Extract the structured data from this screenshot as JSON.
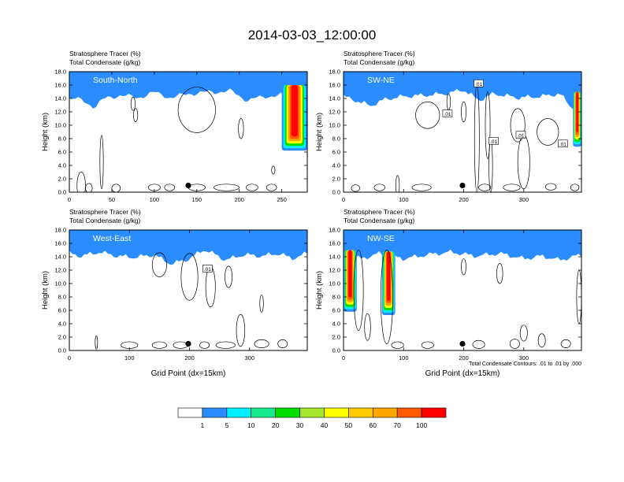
{
  "figure": {
    "title": "2014-03-03_12:00:00"
  },
  "colors": {
    "levels": [
      "#ffffff",
      "#2a8cff",
      "#1ed8f5",
      "#00f0ff",
      "#16e88c",
      "#00dd00",
      "#a6e62e",
      "#ffff00",
      "#ffcc00",
      "#ffa500",
      "#ff5a00",
      "#ff0000"
    ],
    "contour": "#000000",
    "frame": "#000000",
    "marker": "#000000"
  },
  "colorbar": {
    "labels": [
      "1",
      "5",
      "10",
      "20",
      "30",
      "40",
      "50",
      "60",
      "70",
      "100"
    ],
    "swatches": [
      "#ffffff",
      "#2a8cff",
      "#00f0ff",
      "#16e88c",
      "#00dd00",
      "#a6e62e",
      "#ffff00",
      "#ffcc00",
      "#ffa500",
      "#ff5a00",
      "#ff0000"
    ]
  },
  "contour_note": "Total Condensate Contours: .01 to .01 by .000",
  "chart_data": [
    {
      "type": "heatmap",
      "id": "p1",
      "label": "South-North",
      "title_line1": "Stratosphere Tracer   (%)",
      "title_line2": "Total Condensate   (g/kg)",
      "ylabel": "Height (km)",
      "xlabel": "",
      "xlim": [
        0,
        280
      ],
      "ylim": [
        0,
        18
      ],
      "xticks": [
        0,
        50,
        100,
        150,
        200,
        250
      ],
      "yticks": [
        0.0,
        2.0,
        4.0,
        6.0,
        8.0,
        10.0,
        12.0,
        14.0,
        16.0,
        18.0
      ],
      "marker": [
        140,
        1.0
      ],
      "tropopause": [
        [
          0,
          15.0
        ],
        [
          15,
          14.6
        ],
        [
          30,
          13.6
        ],
        [
          40,
          14.8
        ],
        [
          60,
          15.4
        ],
        [
          80,
          15.0
        ],
        [
          100,
          15.8
        ],
        [
          120,
          15.0
        ],
        [
          140,
          15.6
        ],
        [
          160,
          15.8
        ],
        [
          190,
          16.0
        ],
        [
          210,
          14.6
        ],
        [
          230,
          15.2
        ],
        [
          255,
          15.4
        ],
        [
          270,
          15.8
        ],
        [
          280,
          15.8
        ]
      ],
      "intrusions": [
        {
          "x": [
            250,
            280
          ],
          "top": 16.0,
          "bottom": 6.2
        }
      ],
      "contour_labels": [],
      "clouds": [
        {
          "cx": 150,
          "cy": 12.3,
          "rx": 22,
          "ry": 3.4
        },
        {
          "cx": 14,
          "cy": 1.0,
          "rx": 5,
          "ry": 2.0
        },
        {
          "cx": 38,
          "cy": 4.5,
          "rx": 2,
          "ry": 4.0
        },
        {
          "cx": 23,
          "cy": 0.6,
          "rx": 4,
          "ry": 0.7
        },
        {
          "cx": 55,
          "cy": 0.6,
          "rx": 5,
          "ry": 0.6
        },
        {
          "cx": 100,
          "cy": 0.7,
          "rx": 7,
          "ry": 0.5
        },
        {
          "cx": 118,
          "cy": 0.7,
          "rx": 6,
          "ry": 0.5
        },
        {
          "cx": 150,
          "cy": 0.7,
          "rx": 10,
          "ry": 0.5
        },
        {
          "cx": 185,
          "cy": 0.7,
          "rx": 15,
          "ry": 0.5
        },
        {
          "cx": 215,
          "cy": 0.7,
          "rx": 7,
          "ry": 0.5
        },
        {
          "cx": 238,
          "cy": 0.7,
          "rx": 6,
          "ry": 0.5
        },
        {
          "cx": 75,
          "cy": 13.2,
          "rx": 2.5,
          "ry": 1.0
        },
        {
          "cx": 78,
          "cy": 11.5,
          "rx": 2.5,
          "ry": 1.0
        },
        {
          "cx": 202,
          "cy": 9.5,
          "rx": 3,
          "ry": 1.5
        },
        {
          "cx": 240,
          "cy": 3.3,
          "rx": 2,
          "ry": 0.6
        }
      ]
    },
    {
      "type": "heatmap",
      "id": "p2",
      "label": "SW-NE",
      "title_line1": "Stratosphere Tracer   (%)",
      "title_line2": "Total Condensate   (g/kg)",
      "ylabel": "Height (km)",
      "xlabel": "",
      "xlim": [
        0,
        396
      ],
      "ylim": [
        0,
        18
      ],
      "xticks": [
        0,
        100,
        200,
        300
      ],
      "yticks": [
        0.0,
        2.0,
        4.0,
        6.0,
        8.0,
        10.0,
        12.0,
        14.0,
        16.0,
        18.0
      ],
      "marker": [
        198,
        1.0
      ],
      "tropopause": [
        [
          0,
          15.2
        ],
        [
          20,
          14.6
        ],
        [
          45,
          13.8
        ],
        [
          70,
          14.8
        ],
        [
          100,
          15.2
        ],
        [
          140,
          15.4
        ],
        [
          170,
          15.6
        ],
        [
          200,
          16.2
        ],
        [
          225,
          14.6
        ],
        [
          250,
          15.6
        ],
        [
          290,
          15.0
        ],
        [
          330,
          15.2
        ],
        [
          360,
          15.6
        ],
        [
          380,
          13.5
        ],
        [
          396,
          13.8
        ]
      ],
      "intrusions": [
        {
          "x": [
            382,
            396
          ],
          "top": 15.0,
          "bottom": 6.8
        }
      ],
      "contour_labels": [
        {
          "x": 173,
          "y": 11.7,
          "text": ".01"
        },
        {
          "x": 225,
          "y": 16.2,
          "text": ".01"
        },
        {
          "x": 250,
          "y": 7.6,
          "text": ".01"
        },
        {
          "x": 295,
          "y": 8.5,
          "text": ".01"
        },
        {
          "x": 365,
          "y": 7.2,
          "text": ".01"
        }
      ],
      "clouds": [
        {
          "cx": 140,
          "cy": 11.5,
          "rx": 20,
          "ry": 2.0
        },
        {
          "cx": 222,
          "cy": 8.0,
          "rx": 4,
          "ry": 8.0
        },
        {
          "cx": 240,
          "cy": 10.0,
          "rx": 4,
          "ry": 5.0
        },
        {
          "cx": 290,
          "cy": 10.0,
          "rx": 12,
          "ry": 2.5
        },
        {
          "cx": 340,
          "cy": 9.0,
          "rx": 18,
          "ry": 2.0
        },
        {
          "cx": 300,
          "cy": 4.5,
          "rx": 10,
          "ry": 4.0
        },
        {
          "cx": 245,
          "cy": 4.0,
          "rx": 3,
          "ry": 4.0
        },
        {
          "cx": 90,
          "cy": 1.0,
          "rx": 3,
          "ry": 1.5
        },
        {
          "cx": 20,
          "cy": 0.6,
          "rx": 7,
          "ry": 0.5
        },
        {
          "cx": 60,
          "cy": 0.7,
          "rx": 9,
          "ry": 0.5
        },
        {
          "cx": 130,
          "cy": 0.7,
          "rx": 16,
          "ry": 0.5
        },
        {
          "cx": 235,
          "cy": 0.7,
          "rx": 10,
          "ry": 0.5
        },
        {
          "cx": 280,
          "cy": 0.7,
          "rx": 14,
          "ry": 0.5
        },
        {
          "cx": 345,
          "cy": 0.8,
          "rx": 9,
          "ry": 0.5
        },
        {
          "cx": 385,
          "cy": 0.7,
          "rx": 7,
          "ry": 0.5
        },
        {
          "cx": 175,
          "cy": 13.5,
          "rx": 3,
          "ry": 1.2
        },
        {
          "cx": 200,
          "cy": 12.0,
          "rx": 4,
          "ry": 1.5
        }
      ]
    },
    {
      "type": "heatmap",
      "id": "p3",
      "label": "West-East",
      "title_line1": "Stratosphere Tracer   (%)",
      "title_line2": "Total Condensate   (g/kg)",
      "ylabel": "Height (km)",
      "xlabel": "Grid Point (dx=15km)",
      "xlim": [
        0,
        396
      ],
      "ylim": [
        0,
        18
      ],
      "xticks": [
        0,
        100,
        200,
        300
      ],
      "yticks": [
        0.0,
        2.0,
        4.0,
        6.0,
        8.0,
        10.0,
        12.0,
        14.0,
        16.0,
        18.0
      ],
      "marker": [
        198,
        1.0
      ],
      "tropopause": [
        [
          0,
          15.4
        ],
        [
          20,
          15.0
        ],
        [
          50,
          15.6
        ],
        [
          80,
          15.0
        ],
        [
          110,
          14.8
        ],
        [
          140,
          15.2
        ],
        [
          170,
          13.8
        ],
        [
          200,
          14.6
        ],
        [
          225,
          16.0
        ],
        [
          260,
          14.4
        ],
        [
          290,
          15.2
        ],
        [
          320,
          15.0
        ],
        [
          350,
          15.4
        ],
        [
          370,
          14.6
        ],
        [
          396,
          15.4
        ]
      ],
      "intrusions": [],
      "contour_labels": [
        {
          "x": 230,
          "y": 12.2,
          "text": ".01"
        }
      ],
      "clouds": [
        {
          "cx": 150,
          "cy": 12.8,
          "rx": 12,
          "ry": 1.8
        },
        {
          "cx": 200,
          "cy": 11.0,
          "rx": 14,
          "ry": 3.5
        },
        {
          "cx": 235,
          "cy": 9.5,
          "rx": 8,
          "ry": 3.0
        },
        {
          "cx": 265,
          "cy": 11.0,
          "rx": 6,
          "ry": 1.6
        },
        {
          "cx": 285,
          "cy": 3.0,
          "rx": 7,
          "ry": 2.4
        },
        {
          "cx": 320,
          "cy": 7.0,
          "rx": 3,
          "ry": 1.3
        },
        {
          "cx": 45,
          "cy": 1.2,
          "rx": 2,
          "ry": 1.0
        },
        {
          "cx": 100,
          "cy": 0.8,
          "rx": 14,
          "ry": 0.5
        },
        {
          "cx": 150,
          "cy": 0.8,
          "rx": 12,
          "ry": 0.5
        },
        {
          "cx": 185,
          "cy": 0.8,
          "rx": 12,
          "ry": 0.5
        },
        {
          "cx": 225,
          "cy": 0.8,
          "rx": 8,
          "ry": 0.5
        },
        {
          "cx": 260,
          "cy": 0.8,
          "rx": 16,
          "ry": 0.5
        },
        {
          "cx": 320,
          "cy": 1.0,
          "rx": 12,
          "ry": 0.6
        },
        {
          "cx": 355,
          "cy": 1.0,
          "rx": 8,
          "ry": 0.6
        }
      ]
    },
    {
      "type": "heatmap",
      "id": "p4",
      "label": "NW-SE",
      "title_line1": "Stratosphere Tracer   (%)",
      "title_line2": "Total Condensate   (g/kg)",
      "ylabel": "Height (km)",
      "xlabel": "Grid Point (dx=15km)",
      "xlim": [
        0,
        396
      ],
      "ylim": [
        0,
        18
      ],
      "xticks": [
        0,
        100,
        200,
        300
      ],
      "yticks": [
        0.0,
        2.0,
        4.0,
        6.0,
        8.0,
        10.0,
        12.0,
        14.0,
        16.0,
        18.0
      ],
      "marker": [
        198,
        1.0
      ],
      "tropopause": [
        [
          0,
          15.2
        ],
        [
          30,
          14.6
        ],
        [
          60,
          15.4
        ],
        [
          100,
          14.6
        ],
        [
          140,
          15.2
        ],
        [
          180,
          15.6
        ],
        [
          220,
          15.0
        ],
        [
          260,
          15.4
        ],
        [
          300,
          14.6
        ],
        [
          330,
          15.0
        ],
        [
          360,
          14.4
        ],
        [
          396,
          15.2
        ]
      ],
      "intrusions": [
        {
          "x": [
            0,
            22
          ],
          "top": 15.0,
          "bottom": 5.8
        },
        {
          "x": [
            64,
            86
          ],
          "top": 14.8,
          "bottom": 5.3
        }
      ],
      "contour_labels": [],
      "clouds": [
        {
          "cx": 25,
          "cy": 9.0,
          "rx": 8,
          "ry": 6.0
        },
        {
          "cx": 72,
          "cy": 8.0,
          "rx": 10,
          "ry": 7.0
        },
        {
          "cx": 40,
          "cy": 3.5,
          "rx": 5,
          "ry": 2.0
        },
        {
          "cx": 200,
          "cy": 12.5,
          "rx": 4,
          "ry": 1.2
        },
        {
          "cx": 260,
          "cy": 11.5,
          "rx": 5,
          "ry": 1.5
        },
        {
          "cx": 392,
          "cy": 8.0,
          "rx": 4,
          "ry": 4.0
        },
        {
          "cx": 90,
          "cy": 0.8,
          "rx": 10,
          "ry": 0.5
        },
        {
          "cx": 140,
          "cy": 0.8,
          "rx": 10,
          "ry": 0.5
        },
        {
          "cx": 225,
          "cy": 0.9,
          "rx": 10,
          "ry": 0.6
        },
        {
          "cx": 285,
          "cy": 1.0,
          "rx": 8,
          "ry": 0.7
        },
        {
          "cx": 300,
          "cy": 2.6,
          "rx": 6,
          "ry": 1.2
        },
        {
          "cx": 330,
          "cy": 1.5,
          "rx": 6,
          "ry": 1.0
        },
        {
          "cx": 370,
          "cy": 1.0,
          "rx": 8,
          "ry": 0.6
        }
      ]
    }
  ]
}
